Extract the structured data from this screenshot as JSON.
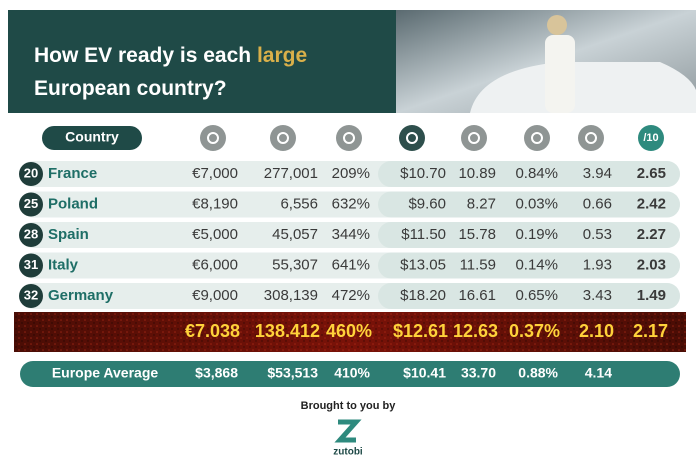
{
  "header": {
    "title_parts": [
      "How EV ready is each ",
      "large",
      "European country?"
    ]
  },
  "table": {
    "column_header": "Country",
    "score_header": "/10",
    "rows": [
      {
        "rank": "20",
        "country": "France",
        "cells": [
          "€7,000",
          "277,001",
          "209%",
          "$10.70",
          "10.89",
          "0.84%",
          "3.94",
          "2.65"
        ]
      },
      {
        "rank": "25",
        "country": "Poland",
        "cells": [
          "€8,190",
          "6,556",
          "632%",
          "$9.60",
          "8.27",
          "0.03%",
          "0.66",
          "2.42"
        ]
      },
      {
        "rank": "28",
        "country": "Spain",
        "cells": [
          "€5,000",
          "45,057",
          "344%",
          "$11.50",
          "15.78",
          "0.19%",
          "0.53",
          "2.27"
        ]
      },
      {
        "rank": "31",
        "country": "Italy",
        "cells": [
          "€6,000",
          "55,307",
          "641%",
          "$13.05",
          "11.59",
          "0.14%",
          "1.93",
          "2.03"
        ]
      },
      {
        "rank": "32",
        "country": "Germany",
        "cells": [
          "€9,000",
          "308,139",
          "472%",
          "$18.20",
          "16.61",
          "0.65%",
          "3.43",
          "1.49"
        ]
      }
    ],
    "highlight_row": [
      "€7.038",
      "138.412",
      "460%",
      "$12.61",
      "12.63",
      "0.37%",
      "2.10",
      "2.17"
    ],
    "average": {
      "label": "Europe Average",
      "cells": [
        "$3,868",
        "$53,513",
        "410%",
        "$10.41",
        "33.70",
        "0.88%",
        "4.14"
      ]
    }
  },
  "footer": {
    "text": "Brought to you by",
    "logo": "zutobi"
  }
}
